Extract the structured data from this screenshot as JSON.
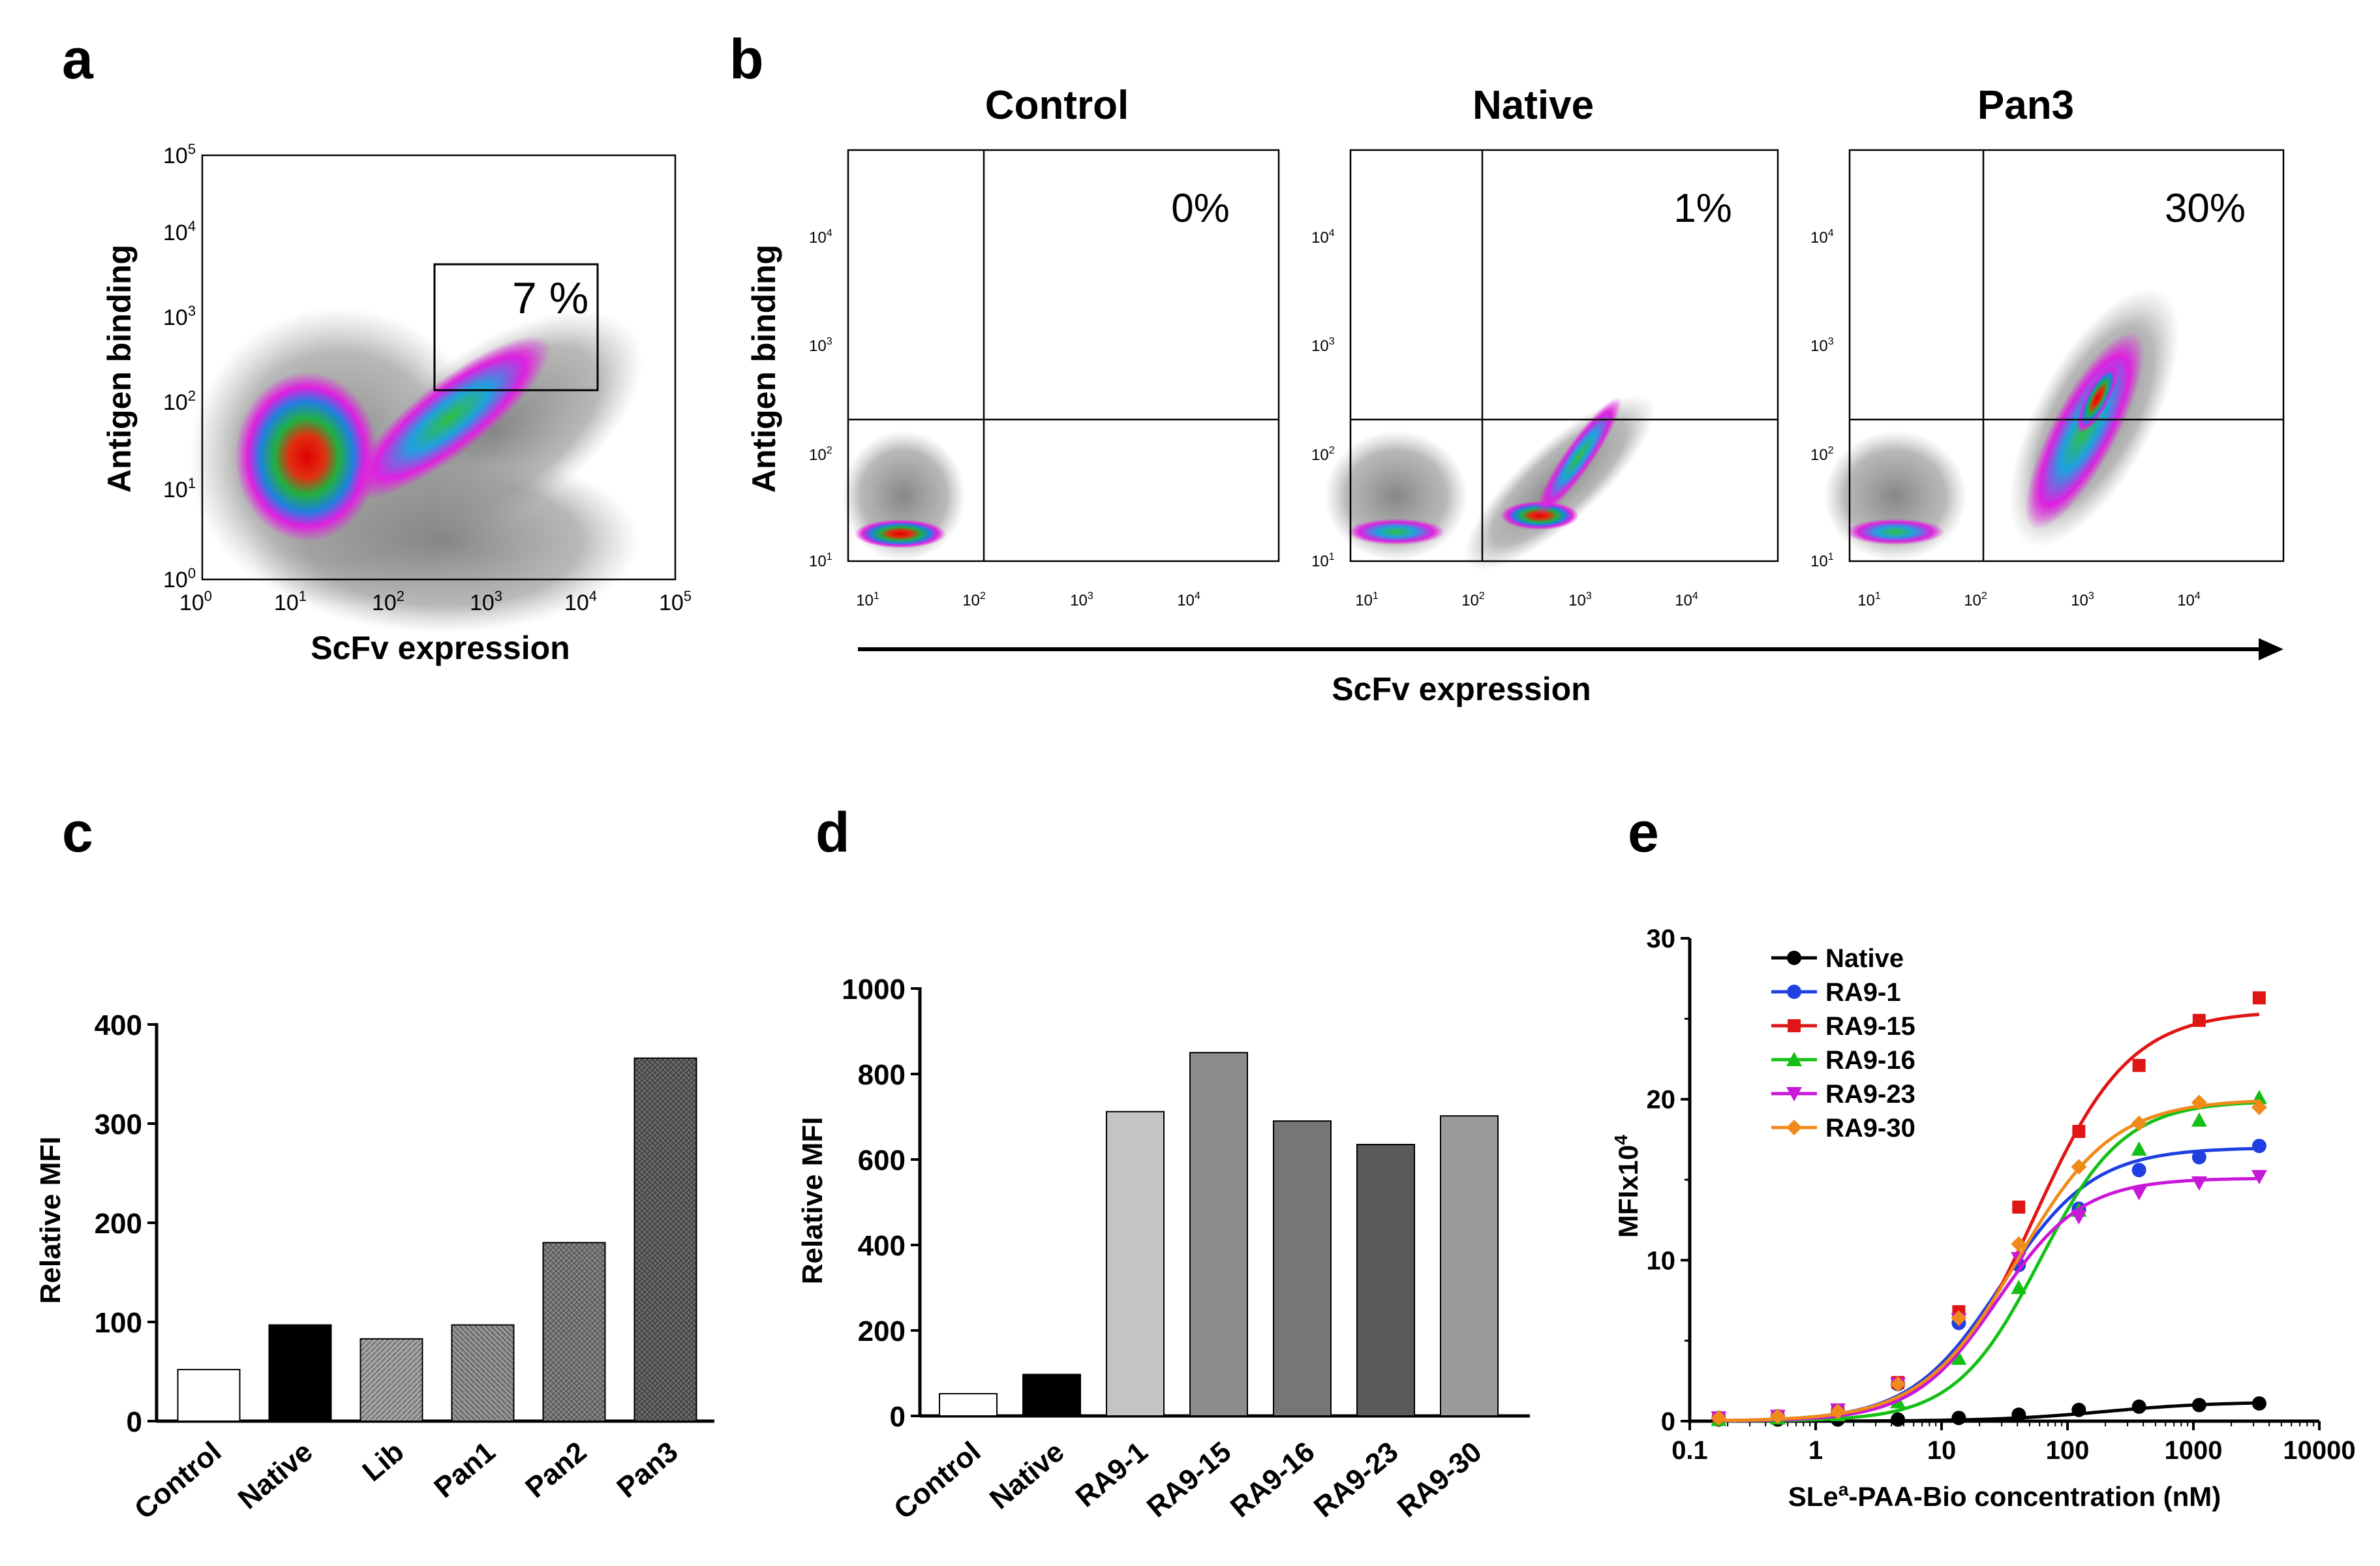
{
  "panels": {
    "a": {
      "label": "a",
      "xlabel": "ScFv expression",
      "ylabel": "Antigen binding",
      "gate_percent": "7 %",
      "xticks": [
        "10",
        "10",
        "10",
        "10",
        "10",
        "10"
      ],
      "xtick_exp": [
        "0",
        "1",
        "2",
        "3",
        "4",
        "5"
      ],
      "yticks": [
        "10",
        "10",
        "10",
        "10",
        "10",
        "10"
      ],
      "ytick_exp": [
        "0",
        "1",
        "2",
        "3",
        "4",
        "5"
      ]
    },
    "b": {
      "label": "b",
      "ylabel": "Antigen binding",
      "xlabel": "ScFv expression",
      "plots": [
        {
          "title": "Control",
          "percent": "0%"
        },
        {
          "title": "Native",
          "percent": "1%"
        },
        {
          "title": "Pan3",
          "percent": "30%"
        }
      ],
      "ticks": [
        "10",
        "10",
        "10",
        "10"
      ],
      "tick_exp": [
        "1",
        "2",
        "3",
        "4"
      ]
    },
    "c": {
      "label": "c"
    },
    "d": {
      "label": "d"
    },
    "e": {
      "label": "e"
    }
  },
  "chart_data": [
    {
      "panel": "c",
      "type": "bar",
      "ylabel": "Relative MFI",
      "categories": [
        "Control",
        "Native",
        "Lib",
        "Pan1",
        "Pan2",
        "Pan3"
      ],
      "values": [
        52,
        97,
        83,
        97,
        180,
        366
      ],
      "fills": [
        "#ffffff",
        "#000000",
        "#8a8a8a",
        "#7a7a7a",
        "#6a6a6a",
        "#555555"
      ],
      "ylim": [
        0,
        400
      ],
      "yticks": [
        0,
        100,
        200,
        300,
        400
      ]
    },
    {
      "panel": "d",
      "type": "bar",
      "ylabel": "Relative MFI",
      "categories": [
        "Control",
        "Native",
        "RA9-1",
        "RA9-15",
        "RA9-16",
        "RA9-23",
        "RA9-30"
      ],
      "values": [
        52,
        97,
        712,
        850,
        690,
        635,
        702
      ],
      "fills": [
        "#ffffff",
        "#000000",
        "#c4c4c4",
        "#8c8c8c",
        "#767676",
        "#5a5a5a",
        "#9a9a9a"
      ],
      "ylim": [
        0,
        1000
      ],
      "yticks": [
        0,
        200,
        400,
        600,
        800,
        1000
      ]
    },
    {
      "panel": "e",
      "type": "scatter",
      "xscale": "log",
      "xlabel_pre": "SLe",
      "xlabel_sup": "a",
      "xlabel_post": "-PAA-Bio concentration (nM)",
      "ylabel_pre": "MFIx10",
      "ylabel_sup": "4",
      "xlim": [
        0.1,
        10000
      ],
      "ylim": [
        0,
        30
      ],
      "xticks": [
        0.1,
        1,
        10,
        100,
        1000,
        10000
      ],
      "xtick_labels": [
        "0.1",
        "1",
        "10",
        "100",
        "1000",
        "10000"
      ],
      "yticks": [
        0,
        10,
        20,
        30
      ],
      "legend_position": "top-left",
      "x": [
        0.17,
        0.5,
        1.5,
        4.5,
        13.7,
        41,
        123,
        370,
        1111,
        3333
      ],
      "series": [
        {
          "name": "Native",
          "color": "#000000",
          "marker": "circle",
          "values": [
            0.1,
            0.1,
            0.1,
            0.1,
            0.2,
            0.4,
            0.7,
            0.9,
            1.0,
            1.1
          ],
          "fit": {
            "bottom": 0.0,
            "top": 1.2,
            "ec50": 200,
            "hill": 1.0
          }
        },
        {
          "name": "RA9-1",
          "color": "#1f3fe0",
          "marker": "circle",
          "values": [
            0.2,
            0.3,
            0.6,
            2.3,
            6.1,
            9.7,
            13.2,
            15.6,
            16.4,
            17.1
          ],
          "fit": {
            "bottom": 0.0,
            "top": 17.0,
            "ec50": 30,
            "hill": 1.2
          }
        },
        {
          "name": "RA9-15",
          "color": "#e01515",
          "marker": "square",
          "values": [
            0.2,
            0.2,
            0.6,
            2.4,
            6.8,
            13.3,
            18.0,
            22.1,
            24.9,
            26.3
          ],
          "fit": {
            "bottom": 0.0,
            "top": 25.5,
            "ec50": 55,
            "hill": 1.15
          }
        },
        {
          "name": "RA9-16",
          "color": "#15c015",
          "marker": "triangle-up",
          "values": [
            0.1,
            0.2,
            0.4,
            1.2,
            3.9,
            8.3,
            13.1,
            16.9,
            18.7,
            20.1
          ],
          "fit": {
            "bottom": 0.0,
            "top": 19.9,
            "ec50": 60,
            "hill": 1.3
          }
        },
        {
          "name": "RA9-23",
          "color": "#c818d8",
          "marker": "triangle-down",
          "values": [
            0.2,
            0.3,
            0.7,
            2.3,
            6.3,
            10.1,
            12.7,
            14.2,
            14.8,
            15.2
          ],
          "fit": {
            "bottom": 0.0,
            "top": 15.1,
            "ec50": 28,
            "hill": 1.3
          }
        },
        {
          "name": "RA9-30",
          "color": "#f08a1a",
          "marker": "diamond",
          "values": [
            0.2,
            0.3,
            0.6,
            2.3,
            6.4,
            11.0,
            15.8,
            18.5,
            19.8,
            19.5
          ],
          "fit": {
            "bottom": 0.0,
            "top": 20.0,
            "ec50": 40,
            "hill": 1.15
          }
        }
      ]
    }
  ]
}
